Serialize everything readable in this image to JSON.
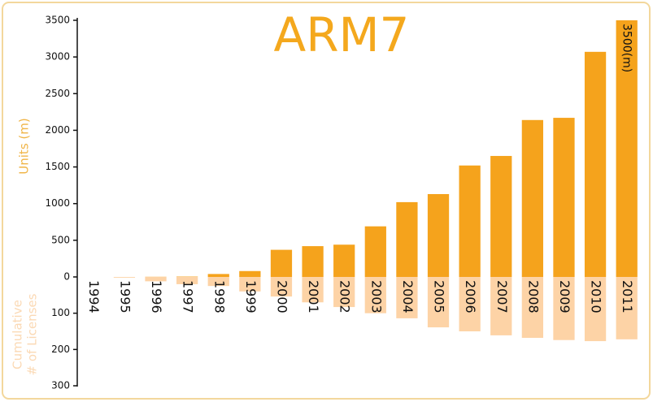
{
  "chart_data": {
    "type": "bar",
    "title": "ARM7",
    "ylabel": "Units (m)",
    "y2label": [
      "Cumulative",
      "# of Licenses"
    ],
    "categories": [
      "1994",
      "1995",
      "1996",
      "1997",
      "1998",
      "1999",
      "2000",
      "2001",
      "2002",
      "2003",
      "2004",
      "2005",
      "2006",
      "2007",
      "2008",
      "2009",
      "2010",
      "2011"
    ],
    "series": [
      {
        "color": "#f5a31c",
        "values": [
          0,
          0,
          2,
          5,
          40,
          80,
          370,
          420,
          440,
          690,
          1020,
          1130,
          1520,
          1650,
          2140,
          2170,
          3070,
          3500
        ],
        "value_labels": [
          null,
          null,
          null,
          null,
          null,
          null,
          null,
          null,
          null,
          null,
          null,
          null,
          null,
          null,
          null,
          null,
          null,
          "3500(m)"
        ]
      },
      {
        "color": "#fdd3a6",
        "axis": "y2",
        "values": [
          0,
          2,
          12,
          20,
          25,
          40,
          54,
          70,
          83,
          100,
          114,
          139,
          150,
          161,
          168,
          174,
          177,
          172
        ]
      }
    ],
    "ylim": [
      0,
      3500
    ],
    "yticks": [
      0,
      500,
      1000,
      1500,
      2000,
      2500,
      3000,
      3500
    ],
    "y2lim": [
      0,
      300
    ],
    "y2ticks": [
      100,
      200,
      300
    ],
    "y2_reversed": true
  }
}
